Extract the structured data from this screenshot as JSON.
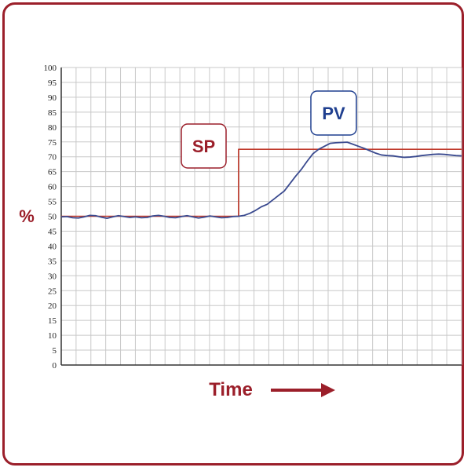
{
  "chart_data": {
    "type": "line",
    "ylabel": "%",
    "xlabel": "Time",
    "ylim": [
      0,
      100
    ],
    "y_ticks": [
      0,
      5,
      10,
      15,
      20,
      25,
      30,
      35,
      40,
      45,
      50,
      55,
      60,
      65,
      70,
      75,
      80,
      85,
      90,
      95,
      100
    ],
    "grid": true,
    "x": [
      0,
      1,
      2,
      3,
      4,
      5,
      6,
      7,
      8,
      9,
      10,
      11,
      12,
      13,
      14,
      15,
      16,
      17,
      18,
      19,
      20,
      21,
      22,
      23,
      24,
      25,
      26,
      27,
      28,
      29,
      30,
      31,
      32,
      33,
      34,
      35,
      36,
      37,
      38,
      39,
      40,
      41,
      42,
      43,
      44,
      45,
      46,
      47,
      48,
      49,
      50,
      51,
      52,
      53,
      54,
      55,
      56,
      57,
      58,
      59,
      60,
      61,
      62,
      63,
      64,
      65,
      66,
      67,
      68,
      69,
      70
    ],
    "series": [
      {
        "name": "SP",
        "label": "SP",
        "color": "#c0392b",
        "values": [
          50,
          50,
          50,
          50,
          50,
          50,
          50,
          50,
          50,
          50,
          50,
          50,
          50,
          50,
          50,
          50,
          50,
          50,
          50,
          50,
          50,
          50,
          50,
          50,
          50,
          50,
          50,
          50,
          50,
          50,
          50,
          72.5,
          72.5,
          72.5,
          72.5,
          72.5,
          72.5,
          72.5,
          72.5,
          72.5,
          72.5,
          72.5,
          72.5,
          72.5,
          72.5,
          72.5,
          72.5,
          72.5,
          72.5,
          72.5,
          72.5,
          72.5,
          72.5,
          72.5,
          72.5,
          72.5,
          72.5,
          72.5,
          72.5,
          72.5,
          72.5,
          72.5,
          72.5,
          72.5,
          72.5,
          72.5,
          72.5,
          72.5,
          72.5,
          72.5,
          72.5
        ]
      },
      {
        "name": "PV",
        "label": "PV",
        "color": "#3a4a8f",
        "values": [
          49.8,
          49.9,
          49.5,
          49.4,
          49.8,
          50.3,
          50.2,
          49.7,
          49.3,
          49.8,
          50.2,
          49.9,
          49.6,
          49.8,
          49.5,
          49.6,
          50.1,
          50.3,
          50.0,
          49.6,
          49.5,
          49.9,
          50.2,
          49.8,
          49.4,
          49.7,
          50.1,
          49.8,
          49.5,
          49.6,
          49.9,
          50.0,
          50.3,
          51.0,
          52.0,
          53.2,
          54.0,
          55.5,
          57.0,
          58.5,
          61.0,
          63.5,
          65.8,
          68.5,
          71.0,
          72.5,
          73.5,
          74.5,
          74.7,
          74.8,
          74.9,
          74.2,
          73.5,
          72.8,
          72.0,
          71.2,
          70.6,
          70.4,
          70.3,
          70.0,
          69.8,
          69.9,
          70.1,
          70.4,
          70.6,
          70.8,
          70.9,
          70.8,
          70.6,
          70.4,
          70.3
        ]
      }
    ],
    "annotations": [
      {
        "text": "SP",
        "series": "SP"
      },
      {
        "text": "PV",
        "series": "PV"
      }
    ]
  },
  "colors": {
    "frame": "#9b1f2a",
    "grid": "#c8c8c8",
    "axis": "#333333",
    "sp": "#c0392b",
    "pv": "#3a4a8f"
  },
  "icons": {
    "arrow": "right-arrow-icon"
  }
}
